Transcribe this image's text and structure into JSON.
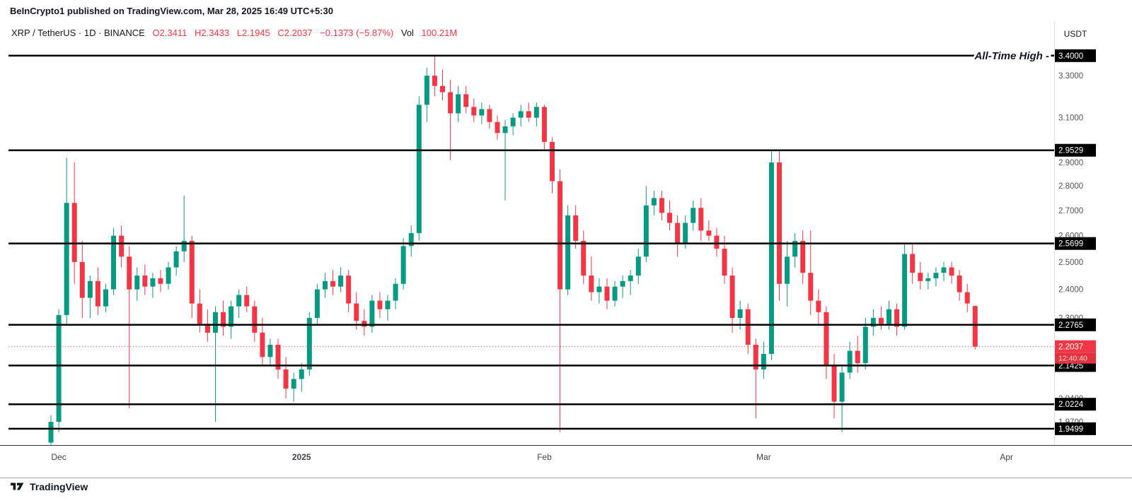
{
  "header": {
    "author": "BeInCrypto1",
    "attribution": " published on TradingView.com, Mar 28, 2025 16:49 UTC+5:30"
  },
  "legend": {
    "symbol_line": "XRP / TetherUS · 1D · BINANCE",
    "o": "O2.3411",
    "h": "H2.3433",
    "l": "L2.1945",
    "c": "C2.2037",
    "change": "−0.1373 (−5.87%)",
    "vol_label": "Vol",
    "vol_value": "100.21M"
  },
  "price_scale": {
    "unit": "USDT",
    "ticks": [
      {
        "p": 3.3,
        "t": "3.3000"
      },
      {
        "p": 3.1,
        "t": "3.1000"
      },
      {
        "p": 2.9,
        "t": "2.9000"
      },
      {
        "p": 2.8,
        "t": "2.8000"
      },
      {
        "p": 2.7,
        "t": "2.7000"
      },
      {
        "p": 2.6,
        "t": "2.6000"
      },
      {
        "p": 2.5,
        "t": "2.5000"
      },
      {
        "p": 2.4,
        "t": "2.4000"
      },
      {
        "p": 2.3,
        "t": "2.3000"
      },
      {
        "p": 2.04,
        "t": "2.0400"
      },
      {
        "p": 1.97,
        "t": "1.9700"
      }
    ],
    "current_label": "2.2037",
    "countdown": "12:40:40"
  },
  "footer": {
    "brand": "TradingView"
  },
  "chart_data": {
    "type": "candlestick",
    "title": "XRP / TetherUS · 1D · BINANCE",
    "symbol": "XRP / TetherUS",
    "interval": "1D",
    "exchange": "BINANCE",
    "scale": "log",
    "ylim": [
      1.903,
      3.468
    ],
    "up_color": "#089981",
    "down_color": "#F23645",
    "level_color": "#000000",
    "current_color": "#F23645",
    "current_price": 2.2037,
    "levels": [
      {
        "price": 3.4,
        "label": "3.4000",
        "annotation": "All-Time High -"
      },
      {
        "price": 2.9529,
        "label": "2.9529"
      },
      {
        "price": 2.5699,
        "label": "2.5699"
      },
      {
        "price": 2.2765,
        "label": "2.2765"
      },
      {
        "price": 2.1425,
        "label": "2.1425"
      },
      {
        "price": 2.0224,
        "label": "2.0224"
      },
      {
        "price": 1.9499,
        "label": "1.9499"
      }
    ],
    "x_labels": [
      {
        "text": "Dec",
        "i": 1,
        "bold": false
      },
      {
        "text": "2025",
        "i": 32,
        "bold": true
      },
      {
        "text": "Feb",
        "i": 63,
        "bold": false
      },
      {
        "text": "Mar",
        "i": 91,
        "bold": false
      },
      {
        "text": "Apr",
        "i": 122,
        "bold": false
      }
    ],
    "candles": [
      [
        1.91,
        1.99,
        1.89,
        1.97
      ],
      [
        1.97,
        2.33,
        1.94,
        2.31
      ],
      [
        2.31,
        2.92,
        2.28,
        2.73
      ],
      [
        2.73,
        2.9,
        2.42,
        2.5
      ],
      [
        2.5,
        2.58,
        2.3,
        2.37
      ],
      [
        2.37,
        2.45,
        2.3,
        2.43
      ],
      [
        2.43,
        2.48,
        2.31,
        2.34
      ],
      [
        2.34,
        2.42,
        2.32,
        2.4
      ],
      [
        2.4,
        2.63,
        2.38,
        2.6
      ],
      [
        2.6,
        2.64,
        2.48,
        2.52
      ],
      [
        2.52,
        2.56,
        2.01,
        2.4
      ],
      [
        2.4,
        2.48,
        2.36,
        2.45
      ],
      [
        2.45,
        2.49,
        2.38,
        2.41
      ],
      [
        2.41,
        2.46,
        2.37,
        2.44
      ],
      [
        2.44,
        2.47,
        2.39,
        2.42
      ],
      [
        2.42,
        2.5,
        2.4,
        2.48
      ],
      [
        2.48,
        2.56,
        2.45,
        2.54
      ],
      [
        2.54,
        2.76,
        2.5,
        2.58
      ],
      [
        2.58,
        2.6,
        2.3,
        2.35
      ],
      [
        2.35,
        2.4,
        2.25,
        2.28
      ],
      [
        2.28,
        2.33,
        2.22,
        2.25
      ],
      [
        2.25,
        2.34,
        1.97,
        2.32
      ],
      [
        2.32,
        2.36,
        2.24,
        2.27
      ],
      [
        2.27,
        2.36,
        2.23,
        2.34
      ],
      [
        2.34,
        2.4,
        2.3,
        2.38
      ],
      [
        2.38,
        2.41,
        2.32,
        2.34
      ],
      [
        2.34,
        2.36,
        2.22,
        2.25
      ],
      [
        2.25,
        2.3,
        2.14,
        2.17
      ],
      [
        2.17,
        2.23,
        2.14,
        2.21
      ],
      [
        2.21,
        2.23,
        2.1,
        2.13
      ],
      [
        2.13,
        2.17,
        2.04,
        2.07
      ],
      [
        2.07,
        2.12,
        2.03,
        2.1
      ],
      [
        2.1,
        2.15,
        2.06,
        2.13
      ],
      [
        2.13,
        2.32,
        2.11,
        2.3
      ],
      [
        2.3,
        2.42,
        2.28,
        2.4
      ],
      [
        2.4,
        2.46,
        2.37,
        2.43
      ],
      [
        2.43,
        2.47,
        2.38,
        2.41
      ],
      [
        2.41,
        2.48,
        2.39,
        2.45
      ],
      [
        2.45,
        2.47,
        2.32,
        2.35
      ],
      [
        2.35,
        2.39,
        2.26,
        2.29
      ],
      [
        2.29,
        2.33,
        2.24,
        2.27
      ],
      [
        2.27,
        2.38,
        2.25,
        2.36
      ],
      [
        2.36,
        2.39,
        2.3,
        2.33
      ],
      [
        2.33,
        2.38,
        2.29,
        2.36
      ],
      [
        2.36,
        2.44,
        2.33,
        2.42
      ],
      [
        2.42,
        2.59,
        2.4,
        2.56
      ],
      [
        2.56,
        2.64,
        2.52,
        2.61
      ],
      [
        2.61,
        3.2,
        2.58,
        3.16
      ],
      [
        3.16,
        3.34,
        3.08,
        3.3
      ],
      [
        3.3,
        3.4,
        3.2,
        3.25
      ],
      [
        3.25,
        3.33,
        3.18,
        3.22
      ],
      [
        3.22,
        3.28,
        2.91,
        3.12
      ],
      [
        3.12,
        3.25,
        3.08,
        3.21
      ],
      [
        3.21,
        3.25,
        3.12,
        3.15
      ],
      [
        3.15,
        3.19,
        3.08,
        3.11
      ],
      [
        3.11,
        3.17,
        3.07,
        3.14
      ],
      [
        3.14,
        3.16,
        3.05,
        3.08
      ],
      [
        3.08,
        3.11,
        3.0,
        3.03
      ],
      [
        3.03,
        3.09,
        2.74,
        3.06
      ],
      [
        3.06,
        3.12,
        3.02,
        3.1
      ],
      [
        3.1,
        3.16,
        3.06,
        3.13
      ],
      [
        3.13,
        3.17,
        3.08,
        3.1
      ],
      [
        3.1,
        3.17,
        3.06,
        3.15
      ],
      [
        3.15,
        3.16,
        2.95,
        2.99
      ],
      [
        2.99,
        3.01,
        2.77,
        2.82
      ],
      [
        2.82,
        2.87,
        1.94,
        2.4
      ],
      [
        2.4,
        2.72,
        2.38,
        2.68
      ],
      [
        2.68,
        2.72,
        2.55,
        2.58
      ],
      [
        2.58,
        2.62,
        2.42,
        2.45
      ],
      [
        2.45,
        2.52,
        2.36,
        2.39
      ],
      [
        2.39,
        2.44,
        2.35,
        2.41
      ],
      [
        2.41,
        2.44,
        2.33,
        2.36
      ],
      [
        2.36,
        2.43,
        2.34,
        2.41
      ],
      [
        2.41,
        2.45,
        2.37,
        2.43
      ],
      [
        2.43,
        2.47,
        2.38,
        2.45
      ],
      [
        2.45,
        2.55,
        2.42,
        2.52
      ],
      [
        2.52,
        2.8,
        2.5,
        2.72
      ],
      [
        2.72,
        2.78,
        2.68,
        2.75
      ],
      [
        2.75,
        2.78,
        2.66,
        2.69
      ],
      [
        2.69,
        2.74,
        2.62,
        2.65
      ],
      [
        2.65,
        2.68,
        2.52,
        2.57
      ],
      [
        2.57,
        2.68,
        2.55,
        2.65
      ],
      [
        2.65,
        2.74,
        2.62,
        2.71
      ],
      [
        2.71,
        2.75,
        2.58,
        2.62
      ],
      [
        2.62,
        2.66,
        2.58,
        2.6
      ],
      [
        2.6,
        2.63,
        2.52,
        2.55
      ],
      [
        2.55,
        2.6,
        2.42,
        2.45
      ],
      [
        2.45,
        2.48,
        2.25,
        2.3
      ],
      [
        2.3,
        2.36,
        2.26,
        2.33
      ],
      [
        2.33,
        2.35,
        2.18,
        2.21
      ],
      [
        2.21,
        2.23,
        1.98,
        2.13
      ],
      [
        2.13,
        2.22,
        2.1,
        2.18
      ],
      [
        2.18,
        2.95,
        2.16,
        2.9
      ],
      [
        2.9,
        2.95,
        2.36,
        2.42
      ],
      [
        2.42,
        2.58,
        2.34,
        2.52
      ],
      [
        2.52,
        2.61,
        2.48,
        2.58
      ],
      [
        2.58,
        2.62,
        2.42,
        2.46
      ],
      [
        2.46,
        2.62,
        2.31,
        2.36
      ],
      [
        2.36,
        2.4,
        2.28,
        2.32
      ],
      [
        2.32,
        2.34,
        2.1,
        2.14
      ],
      [
        2.14,
        2.18,
        1.98,
        2.03
      ],
      [
        2.03,
        2.14,
        1.94,
        2.12
      ],
      [
        2.12,
        2.22,
        2.1,
        2.19
      ],
      [
        2.19,
        2.24,
        2.12,
        2.15
      ],
      [
        2.15,
        2.3,
        2.13,
        2.27
      ],
      [
        2.27,
        2.33,
        2.24,
        2.3
      ],
      [
        2.3,
        2.34,
        2.26,
        2.28
      ],
      [
        2.28,
        2.36,
        2.26,
        2.33
      ],
      [
        2.33,
        2.35,
        2.24,
        2.27
      ],
      [
        2.27,
        2.57,
        2.26,
        2.53
      ],
      [
        2.53,
        2.57,
        2.42,
        2.46
      ],
      [
        2.46,
        2.5,
        2.4,
        2.43
      ],
      [
        2.43,
        2.46,
        2.4,
        2.44
      ],
      [
        2.44,
        2.48,
        2.41,
        2.46
      ],
      [
        2.46,
        2.5,
        2.43,
        2.48
      ],
      [
        2.48,
        2.5,
        2.42,
        2.45
      ],
      [
        2.45,
        2.47,
        2.36,
        2.39
      ],
      [
        2.39,
        2.42,
        2.32,
        2.35
      ],
      [
        2.3411,
        2.3433,
        2.1945,
        2.2037
      ]
    ]
  }
}
